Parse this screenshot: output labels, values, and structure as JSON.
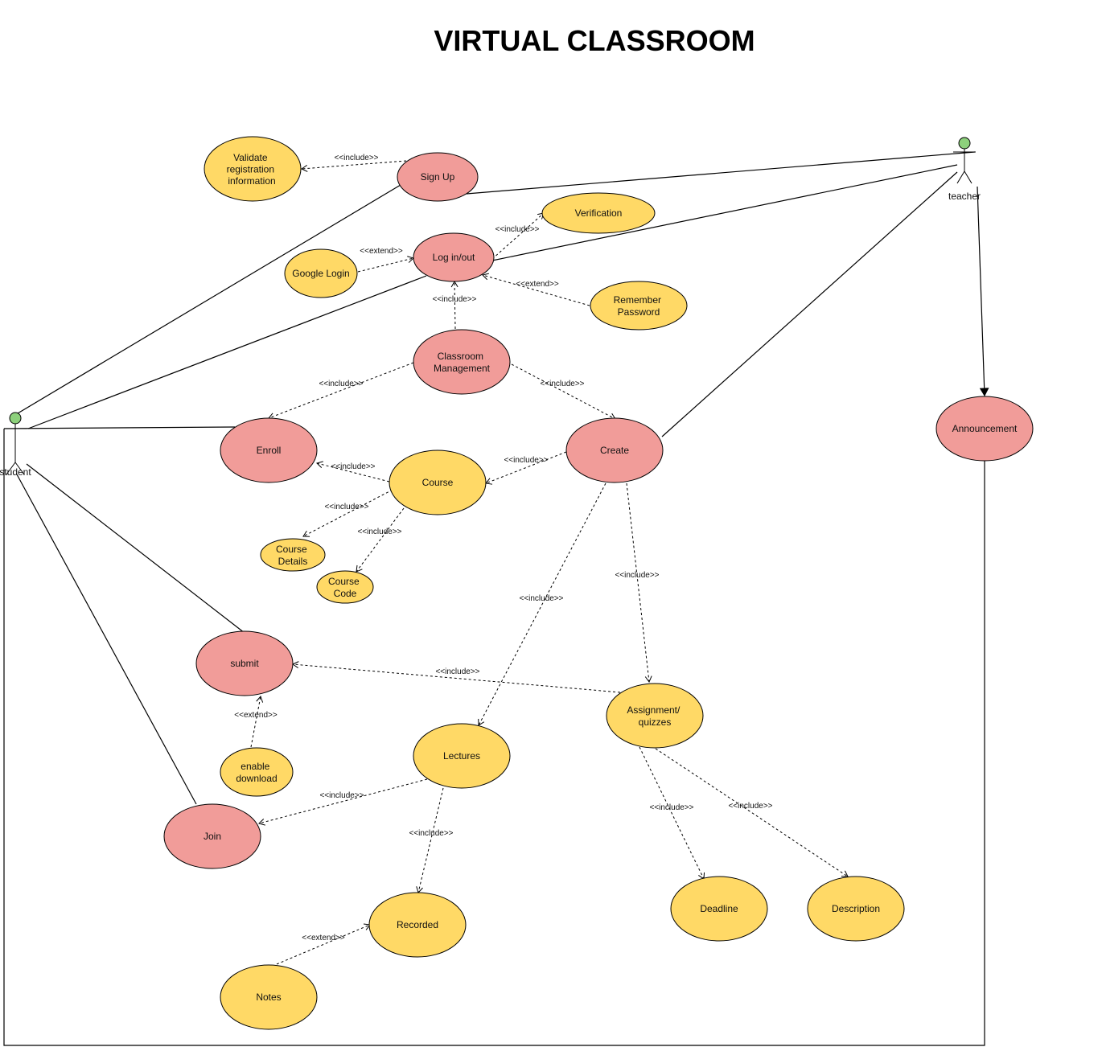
{
  "title": "VIRTUAL CLASSROOM",
  "colors": {
    "primary_use_case": "#f19c99",
    "secondary_use_case": "#ffd966",
    "actor_head": "#8dd17c",
    "line": "#000000"
  },
  "actors": {
    "student": "student",
    "teacher": "teacher"
  },
  "use_cases": {
    "validate": [
      "Validate",
      "registration",
      "information"
    ],
    "signup": [
      "Sign Up"
    ],
    "verification": [
      "Verification"
    ],
    "google_login": [
      "Google Login"
    ],
    "login": [
      "Log in/out"
    ],
    "remember": [
      "Remember",
      "Password"
    ],
    "classroom": [
      "Classroom",
      "Management"
    ],
    "enroll": [
      "Enroll"
    ],
    "create": [
      "Create"
    ],
    "course": [
      "Course"
    ],
    "course_details": [
      "Course",
      "Details"
    ],
    "course_code": [
      "Course",
      "Code"
    ],
    "announcement": [
      "Announcement"
    ],
    "submit": [
      "submit"
    ],
    "assignment": [
      "Assignment/",
      "quizzes"
    ],
    "enable_download": [
      "enable",
      "download"
    ],
    "lectures": [
      "Lectures"
    ],
    "join": [
      "Join"
    ],
    "recorded": [
      "Recorded"
    ],
    "deadline": [
      "Deadline"
    ],
    "description": [
      "Description"
    ],
    "notes": [
      "Notes"
    ]
  },
  "relations": {
    "include": "<<include>>",
    "extend": "<<extend>>"
  }
}
